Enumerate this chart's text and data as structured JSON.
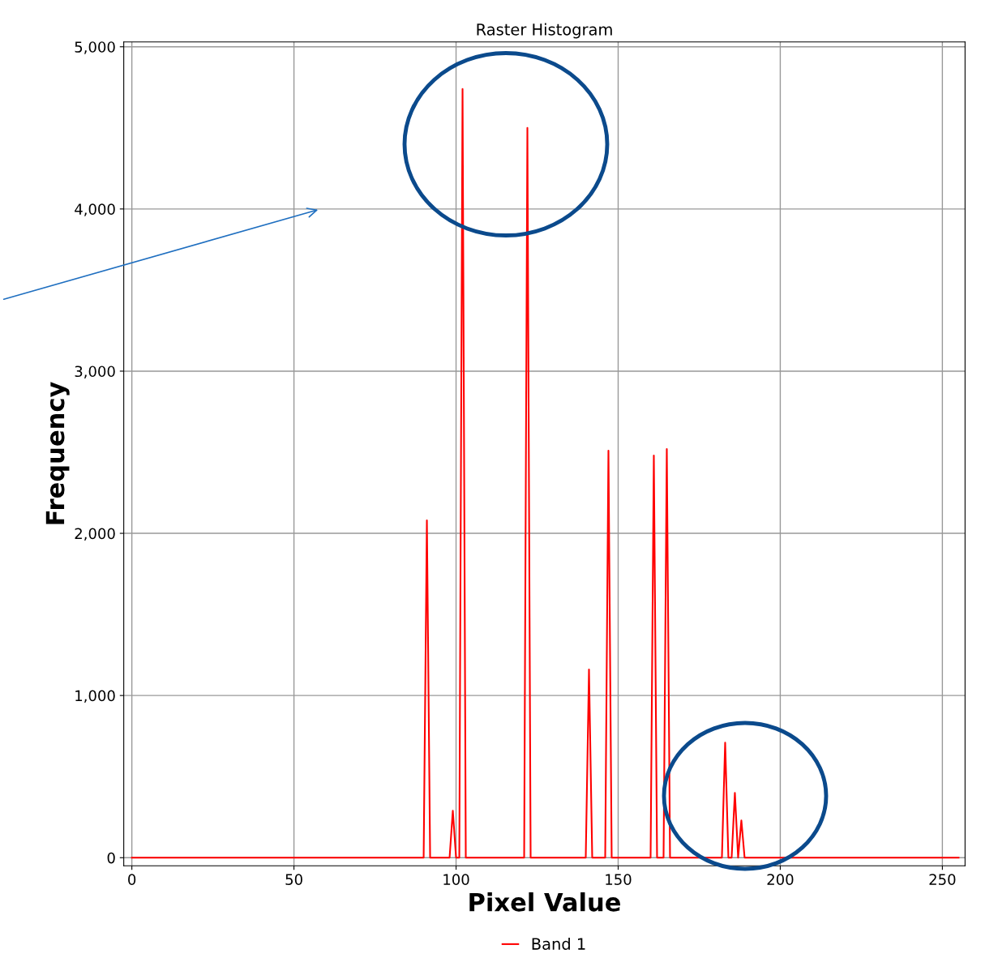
{
  "chart_data": {
    "type": "line",
    "title": "Raster Histogram",
    "xlabel": "Pixel Value",
    "ylabel": "Frequency",
    "xlim": [
      -2.5,
      257
    ],
    "ylim": [
      -50,
      5030
    ],
    "xticks": [
      0,
      50,
      100,
      150,
      200,
      250
    ],
    "yticks": [
      {
        "value": 0,
        "label": "0"
      },
      {
        "value": 1000,
        "label": "1,000"
      },
      {
        "value": 2000,
        "label": "2,000"
      },
      {
        "value": 3000,
        "label": "3,000"
      },
      {
        "value": 4000,
        "label": "4,000"
      },
      {
        "value": 5000,
        "label": "5,000"
      }
    ],
    "grid": true,
    "legend": "bottom",
    "marker": "none",
    "line_style": "solid",
    "series": [
      {
        "name": "Band 1",
        "color": "#ff0000",
        "x": [
          0,
          90,
          91,
          92,
          98,
          99,
          100,
          101,
          102,
          103,
          121,
          122,
          123,
          140,
          141,
          142,
          146,
          147,
          148,
          160,
          161,
          162,
          164,
          165,
          166,
          182,
          183,
          184,
          185,
          186,
          187,
          188,
          189,
          255
        ],
        "values": [
          0,
          0,
          2080,
          0,
          0,
          290,
          0,
          0,
          4740,
          0,
          0,
          4500,
          0,
          0,
          1160,
          0,
          0,
          2510,
          0,
          0,
          2480,
          0,
          0,
          2520,
          0,
          0,
          710,
          0,
          0,
          400,
          0,
          230,
          0,
          0
        ]
      }
    ]
  }
}
